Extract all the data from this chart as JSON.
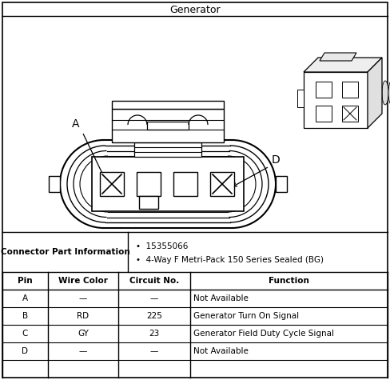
{
  "title": "Generator",
  "background_color": "#ffffff",
  "connector_part_info_label": "Connector Part Information",
  "part_numbers": [
    "15355066",
    "4-Way F Metri-Pack 150 Series Sealed (BG)"
  ],
  "table_headers": [
    "Pin",
    "Wire Color",
    "Circuit No.",
    "Function"
  ],
  "table_rows": [
    [
      "A",
      "—",
      "—",
      "Not Available"
    ],
    [
      "B",
      "RD",
      "225",
      "Generator Turn On Signal"
    ],
    [
      "C",
      "GY",
      "23",
      "Generator Field Duty Cycle Signal"
    ],
    [
      "D",
      "—",
      "—",
      "Not Available"
    ]
  ],
  "label_A": "A",
  "label_D": "D",
  "fig_w": 4.88,
  "fig_h": 4.75,
  "dpi": 100
}
